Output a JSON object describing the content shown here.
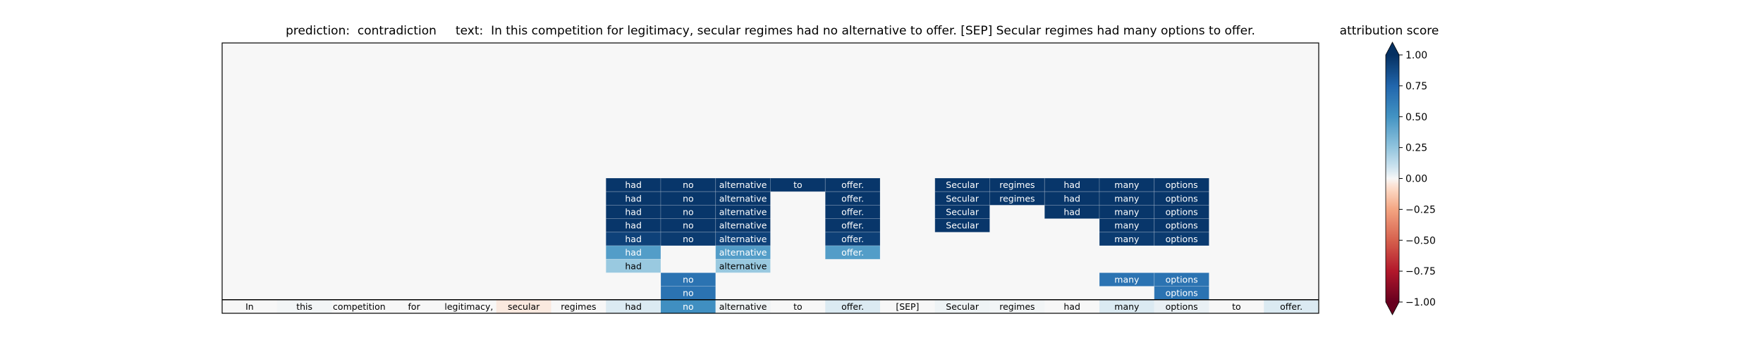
{
  "chart_data": {
    "type": "heatmap",
    "title": {
      "prediction_label": "prediction:",
      "prediction": "contradiction",
      "text_label": "text:",
      "text": "In this competition for legitimacy, secular regimes had no alternative to offer. [SEP] Secular regimes had many options to offer."
    },
    "tokens": [
      "In",
      "this",
      "competition",
      "for",
      "legitimacy,",
      "secular",
      "regimes",
      "had",
      "no",
      "alternative",
      "to",
      "offer.",
      "[SEP]",
      "Secular",
      "regimes",
      "had",
      "many",
      "options",
      "to",
      "offer."
    ],
    "token_scores": [
      0.0,
      0.01,
      0.0,
      0.0,
      0.0,
      -0.04,
      0.0,
      0.06,
      0.52,
      0.02,
      0.0,
      0.06,
      0.0,
      0.02,
      0.01,
      0.0,
      0.06,
      0.03,
      0.0,
      0.06
    ],
    "rows": [
      {
        "index": 9,
        "cells": {
          "7": 0.97,
          "8": 0.97,
          "9": 0.97,
          "10": 0.97,
          "11": 0.97,
          "13": 0.97,
          "14": 0.97,
          "15": 0.97,
          "16": 0.97,
          "17": 0.97
        }
      },
      {
        "index": 8,
        "cells": {
          "7": 0.97,
          "8": 0.97,
          "9": 0.97,
          "11": 0.97,
          "13": 0.97,
          "14": 0.97,
          "15": 0.97,
          "16": 0.97,
          "17": 0.97
        }
      },
      {
        "index": 7,
        "cells": {
          "7": 0.97,
          "8": 0.97,
          "9": 0.97,
          "11": 0.97,
          "13": 0.97,
          "15": 0.97,
          "16": 0.97,
          "17": 0.97
        }
      },
      {
        "index": 6,
        "cells": {
          "7": 0.97,
          "8": 0.97,
          "9": 0.97,
          "11": 0.97,
          "13": 0.97,
          "16": 0.97,
          "17": 0.97
        }
      },
      {
        "index": 5,
        "cells": {
          "7": 0.92,
          "8": 0.95,
          "9": 0.92,
          "11": 0.93,
          "16": 0.95,
          "17": 0.95
        }
      },
      {
        "index": 4,
        "cells": {
          "7": 0.45,
          "9": 0.45,
          "11": 0.45
        }
      },
      {
        "index": 3,
        "cells": {
          "7": 0.23,
          "9": 0.23
        }
      },
      {
        "index": 2,
        "cells": {
          "8": 0.68,
          "16": 0.68,
          "17": 0.68
        }
      },
      {
        "index": 1,
        "cells": {
          "8": 0.68,
          "17": 0.68
        }
      }
    ],
    "colorbar": {
      "label": "attribution score",
      "range": [
        -1.0,
        1.0
      ],
      "ticks": [
        "1.00",
        "0.75",
        "0.50",
        "0.25",
        "0.00",
        "−0.25",
        "−0.50",
        "−0.75",
        "−1.00"
      ],
      "colormap": "RdBu"
    },
    "grid": false
  }
}
